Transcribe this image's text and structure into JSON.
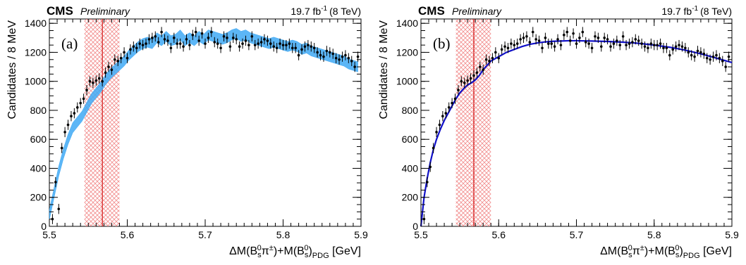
{
  "chart_data": [
    {
      "type": "scatter",
      "panel_label": "(a)",
      "experiment": "CMS",
      "status": "Preliminary",
      "lumi": "19.7 fb",
      "lumi_exp": "-1",
      "energy": "(8 TeV)",
      "xlabel": {
        "pre": "ΔM(B",
        "sub1": "s",
        "sup1": "0",
        "mid": "π",
        "sup2": "±",
        "mid2": ")+M(B",
        "sub2": "s",
        "sup3": "0",
        "post": ")",
        "sub3": "PDG",
        "unit": " [GeV]"
      },
      "ylabel": "Candidates / 8 MeV",
      "xlim": [
        5.5,
        5.9
      ],
      "ylim": [
        0,
        1430
      ],
      "xticks": [
        5.5,
        5.6,
        5.7,
        5.8,
        5.9
      ],
      "xtick_labels": [
        "5.5",
        "5.6",
        "5.7",
        "5.8",
        "5.9"
      ],
      "yticks": [
        0,
        200,
        400,
        600,
        800,
        1000,
        1200,
        1400
      ],
      "ytick_labels": [
        "0",
        "200",
        "400",
        "600",
        "800",
        "1000",
        "1200",
        "1400"
      ],
      "signal_region": [
        5.545,
        5.59
      ],
      "signal_line_x": 5.568,
      "colors": {
        "data": "#000000",
        "band": "#3fa9f5",
        "signal_hatch": "#f08080",
        "signal_line": "#d62020",
        "fit": "#1010c8"
      },
      "series": [
        {
          "kind": "data",
          "x": [
            5.504,
            5.508,
            5.512,
            5.516,
            5.52,
            5.524,
            5.528,
            5.532,
            5.536,
            5.54,
            5.544,
            5.548,
            5.552,
            5.556,
            5.56,
            5.564,
            5.568,
            5.572,
            5.576,
            5.58,
            5.584,
            5.588,
            5.592,
            5.596,
            5.6,
            5.604,
            5.608,
            5.612,
            5.616,
            5.62,
            5.624,
            5.628,
            5.632,
            5.636,
            5.64,
            5.644,
            5.648,
            5.652,
            5.656,
            5.66,
            5.664,
            5.668,
            5.672,
            5.676,
            5.68,
            5.684,
            5.688,
            5.692,
            5.696,
            5.7,
            5.704,
            5.708,
            5.712,
            5.716,
            5.72,
            5.724,
            5.728,
            5.732,
            5.736,
            5.74,
            5.744,
            5.748,
            5.752,
            5.756,
            5.76,
            5.764,
            5.768,
            5.772,
            5.776,
            5.78,
            5.784,
            5.788,
            5.792,
            5.796,
            5.8,
            5.804,
            5.808,
            5.812,
            5.816,
            5.82,
            5.824,
            5.828,
            5.832,
            5.836,
            5.84,
            5.844,
            5.848,
            5.852,
            5.856,
            5.86,
            5.864,
            5.868,
            5.872,
            5.876,
            5.88,
            5.884,
            5.888,
            5.892,
            5.896
          ],
          "y": [
            50,
            305,
            120,
            540,
            650,
            700,
            760,
            780,
            820,
            850,
            880,
            940,
            1000,
            990,
            1005,
            1020,
            1000,
            1060,
            1100,
            1080,
            1150,
            1140,
            1160,
            1200,
            1160,
            1220,
            1240,
            1230,
            1260,
            1250,
            1260,
            1290,
            1300,
            1310,
            1270,
            1340,
            1290,
            1280,
            1230,
            1300,
            1260,
            1260,
            1240,
            1290,
            1250,
            1320,
            1340,
            1280,
            1330,
            1260,
            1300,
            1340,
            1270,
            1260,
            1230,
            1310,
            1300,
            1240,
            1300,
            1290,
            1240,
            1260,
            1280,
            1250,
            1310,
            1250,
            1260,
            1270,
            1290,
            1280,
            1260,
            1240,
            1230,
            1260,
            1250,
            1250,
            1260,
            1230,
            1230,
            1180,
            1220,
            1240,
            1250,
            1240,
            1230,
            1200,
            1180,
            1170,
            1210,
            1200,
            1190,
            1160,
            1150,
            1170,
            1180,
            1160,
            1140,
            1100,
            1170
          ],
          "yerr": 35
        },
        {
          "kind": "band",
          "x": [
            5.5,
            5.506,
            5.512,
            5.518,
            5.524,
            5.53,
            5.536,
            5.542,
            5.548,
            5.554,
            5.56,
            5.566,
            5.572,
            5.578,
            5.584,
            5.59,
            5.596,
            5.602,
            5.608,
            5.614,
            5.62,
            5.626,
            5.632,
            5.638,
            5.644,
            5.65,
            5.656,
            5.662,
            5.668,
            5.674,
            5.68,
            5.686,
            5.692,
            5.698,
            5.704,
            5.71,
            5.716,
            5.722,
            5.728,
            5.734,
            5.74,
            5.746,
            5.752,
            5.758,
            5.764,
            5.77,
            5.776,
            5.782,
            5.788,
            5.794,
            5.8,
            5.806,
            5.812,
            5.818,
            5.824,
            5.83,
            5.836,
            5.842,
            5.848,
            5.854,
            5.86,
            5.866,
            5.872,
            5.878,
            5.884,
            5.89,
            5.896
          ],
          "y": [
            80,
            230,
            380,
            500,
            600,
            680,
            720,
            760,
            820,
            880,
            920,
            960,
            1010,
            1050,
            1080,
            1110,
            1140,
            1180,
            1210,
            1240,
            1260,
            1270,
            1260,
            1300,
            1280,
            1310,
            1280,
            1290,
            1320,
            1280,
            1300,
            1280,
            1310,
            1290,
            1320,
            1310,
            1300,
            1290,
            1300,
            1320,
            1330,
            1310,
            1320,
            1300,
            1290,
            1280,
            1270,
            1260,
            1270,
            1260,
            1250,
            1240,
            1250,
            1240,
            1220,
            1230,
            1210,
            1200,
            1190,
            1180,
            1170,
            1160,
            1150,
            1140,
            1120,
            1110,
            1100
          ],
          "halfwidth": 35
        }
      ]
    },
    {
      "type": "scatter",
      "panel_label": "(b)",
      "experiment": "CMS",
      "status": "Preliminary",
      "lumi": "19.7 fb",
      "lumi_exp": "-1",
      "energy": "(8 TeV)",
      "xlabel": {
        "pre": "ΔM(B",
        "sub1": "s",
        "sup1": "0",
        "mid": "π",
        "sup2": "±",
        "mid2": ")+M(B",
        "sub2": "s",
        "sup3": "0",
        "post": ")",
        "sub3": "PDG",
        "unit": " [GeV]"
      },
      "ylabel": "Candidates / 8 MeV",
      "xlim": [
        5.5,
        5.9
      ],
      "ylim": [
        0,
        1430
      ],
      "xticks": [
        5.5,
        5.6,
        5.7,
        5.8,
        5.9
      ],
      "xtick_labels": [
        "5.5",
        "5.6",
        "5.7",
        "5.8",
        "5.9"
      ],
      "yticks": [
        0,
        200,
        400,
        600,
        800,
        1000,
        1200,
        1400
      ],
      "ytick_labels": [
        "0",
        "200",
        "400",
        "600",
        "800",
        "1000",
        "1200",
        "1400"
      ],
      "signal_region": [
        5.545,
        5.59
      ],
      "signal_line_x": 5.568,
      "colors": {
        "data": "#000000",
        "band": "#3fa9f5",
        "signal_hatch": "#f08080",
        "signal_line": "#d62020",
        "fit": "#1010c8"
      },
      "series": [
        {
          "kind": "data",
          "x": [
            5.504,
            5.508,
            5.512,
            5.516,
            5.52,
            5.524,
            5.528,
            5.532,
            5.536,
            5.54,
            5.544,
            5.548,
            5.552,
            5.556,
            5.56,
            5.564,
            5.568,
            5.572,
            5.576,
            5.58,
            5.584,
            5.588,
            5.592,
            5.596,
            5.6,
            5.604,
            5.608,
            5.612,
            5.616,
            5.62,
            5.624,
            5.628,
            5.632,
            5.636,
            5.64,
            5.644,
            5.648,
            5.652,
            5.656,
            5.66,
            5.664,
            5.668,
            5.672,
            5.676,
            5.68,
            5.684,
            5.688,
            5.692,
            5.696,
            5.7,
            5.704,
            5.708,
            5.712,
            5.716,
            5.72,
            5.724,
            5.728,
            5.732,
            5.736,
            5.74,
            5.744,
            5.748,
            5.752,
            5.756,
            5.76,
            5.764,
            5.768,
            5.772,
            5.776,
            5.78,
            5.784,
            5.788,
            5.792,
            5.796,
            5.8,
            5.804,
            5.808,
            5.812,
            5.816,
            5.82,
            5.824,
            5.828,
            5.832,
            5.836,
            5.84,
            5.844,
            5.848,
            5.852,
            5.856,
            5.86,
            5.864,
            5.868,
            5.872,
            5.876,
            5.88,
            5.884,
            5.888,
            5.892,
            5.896
          ],
          "y": [
            50,
            305,
            410,
            540,
            650,
            700,
            760,
            780,
            820,
            850,
            880,
            940,
            1000,
            990,
            1005,
            1020,
            1040,
            1060,
            1100,
            1080,
            1150,
            1140,
            1160,
            1200,
            1160,
            1220,
            1240,
            1230,
            1260,
            1250,
            1260,
            1290,
            1300,
            1310,
            1270,
            1340,
            1290,
            1280,
            1230,
            1300,
            1260,
            1260,
            1240,
            1290,
            1250,
            1320,
            1340,
            1280,
            1330,
            1260,
            1300,
            1340,
            1270,
            1260,
            1230,
            1310,
            1300,
            1240,
            1300,
            1290,
            1240,
            1260,
            1280,
            1250,
            1310,
            1250,
            1260,
            1270,
            1290,
            1280,
            1260,
            1240,
            1230,
            1260,
            1250,
            1250,
            1260,
            1230,
            1230,
            1180,
            1220,
            1240,
            1250,
            1240,
            1230,
            1200,
            1180,
            1170,
            1210,
            1200,
            1190,
            1160,
            1150,
            1170,
            1180,
            1160,
            1140,
            1100,
            1170
          ],
          "yerr": 35
        },
        {
          "kind": "fit",
          "x": [
            5.5,
            5.504,
            5.508,
            5.512,
            5.516,
            5.52,
            5.525,
            5.53,
            5.535,
            5.54,
            5.545,
            5.55,
            5.555,
            5.56,
            5.565,
            5.57,
            5.575,
            5.58,
            5.585,
            5.59,
            5.6,
            5.61,
            5.62,
            5.63,
            5.64,
            5.65,
            5.66,
            5.67,
            5.68,
            5.69,
            5.7,
            5.72,
            5.74,
            5.76,
            5.78,
            5.8,
            5.82,
            5.84,
            5.86,
            5.88,
            5.9
          ],
          "y": [
            0,
            200,
            330,
            440,
            530,
            600,
            670,
            730,
            780,
            830,
            880,
            920,
            950,
            975,
            990,
            1010,
            1040,
            1080,
            1110,
            1140,
            1170,
            1200,
            1220,
            1240,
            1255,
            1265,
            1272,
            1276,
            1278,
            1280,
            1280,
            1278,
            1275,
            1270,
            1262,
            1250,
            1235,
            1215,
            1190,
            1160,
            1130
          ]
        }
      ]
    }
  ]
}
